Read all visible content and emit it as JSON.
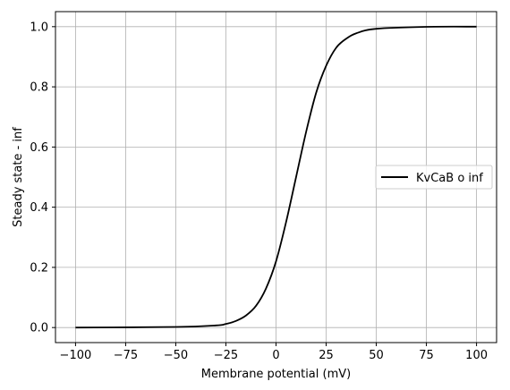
{
  "chart_data": {
    "type": "line",
    "title": "",
    "xlabel": "Membrane potential (mV)",
    "ylabel": "Steady state - inf",
    "xlim": [
      -110,
      110
    ],
    "ylim": [
      -0.05,
      1.05
    ],
    "x_ticks": [
      -100,
      -75,
      -50,
      -25,
      0,
      25,
      50,
      75,
      100
    ],
    "x_tick_labels": [
      "−100",
      "−75",
      "−50",
      "−25",
      "0",
      "25",
      "50",
      "75",
      "100"
    ],
    "y_ticks": [
      0.0,
      0.2,
      0.4,
      0.6,
      0.8,
      1.0
    ],
    "y_tick_labels": [
      "0.0",
      "0.2",
      "0.4",
      "0.6",
      "0.8",
      "1.0"
    ],
    "grid": true,
    "legend_position": "center-right",
    "series": [
      {
        "name": "KvCaB o inf",
        "color": "#000000",
        "x": [
          -100,
          -50,
          -30,
          -25,
          -20,
          -15,
          -10,
          -5,
          0,
          5,
          10,
          15,
          20,
          25,
          30,
          35,
          40,
          50,
          75,
          100
        ],
        "y": [
          0.0,
          0.002,
          0.007,
          0.012,
          0.022,
          0.04,
          0.072,
          0.13,
          0.22,
          0.35,
          0.5,
          0.65,
          0.78,
          0.87,
          0.93,
          0.96,
          0.978,
          0.993,
          0.9995,
          1.0
        ]
      }
    ]
  }
}
